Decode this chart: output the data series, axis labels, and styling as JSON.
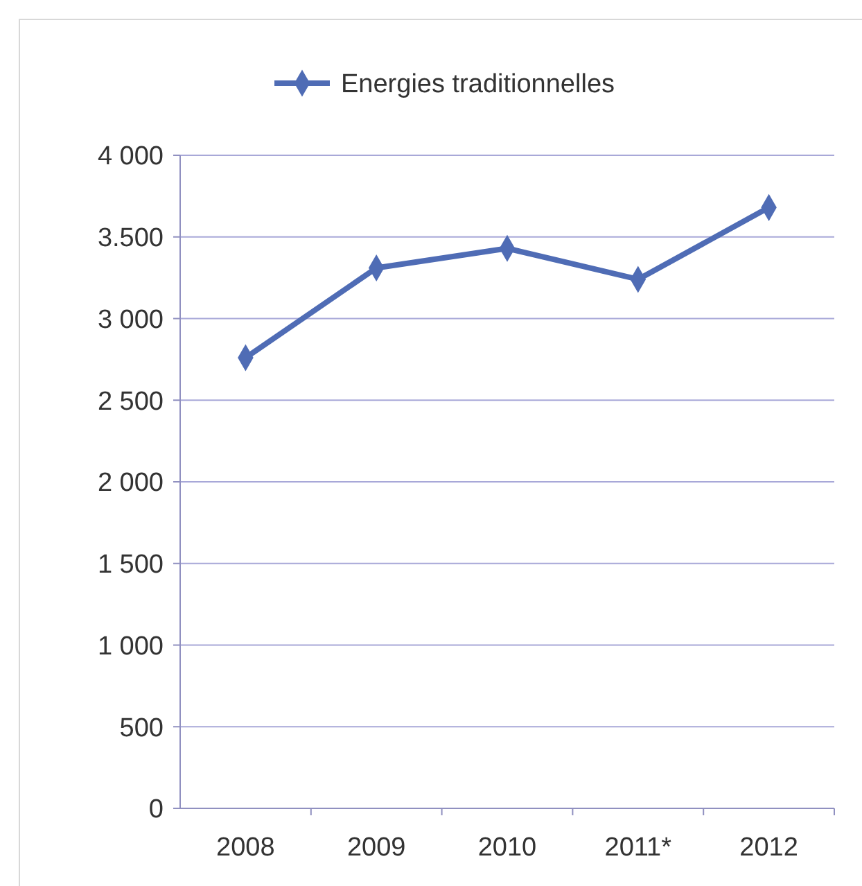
{
  "chart_data": {
    "type": "line",
    "categories": [
      "2008",
      "2009",
      "2010",
      "2011*",
      "2012"
    ],
    "series": [
      {
        "name": "Energies traditionnelles",
        "color": "#4f6cb5",
        "values": [
          2760,
          3310,
          3430,
          3240,
          3680
        ]
      }
    ],
    "ylim": [
      0,
      4000
    ],
    "yticks": [
      0,
      500,
      {
        "value": 1000,
        "label": "1 000"
      },
      {
        "value": 1500,
        "label": "1 500"
      },
      {
        "value": 2000,
        "label": "2 000"
      },
      {
        "value": 2500,
        "label": "2 500"
      },
      {
        "value": 3000,
        "label": "3 000"
      },
      {
        "value": 3500,
        "label": "3.500"
      },
      {
        "value": 4000,
        "label": "4 000"
      }
    ],
    "grid": "y",
    "legend": "top",
    "marker": "diamond",
    "line_style": "solid"
  }
}
